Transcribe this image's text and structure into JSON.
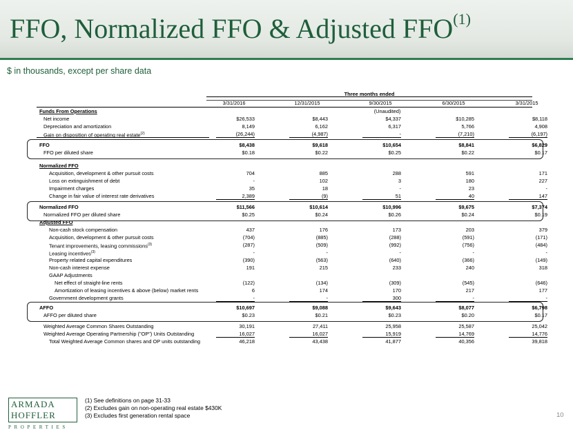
{
  "title": "FFO, Normalized FFO & Adjusted FFO",
  "title_sup": "(1)",
  "subtitle": "$ in thousands, except per share data",
  "table": {
    "header_group": "Three months ended",
    "columns": [
      "3/31/2016",
      "12/31/2015",
      "9/30/2015",
      "6/30/2015",
      "3/31/2015"
    ],
    "unaudited": "(Unaudited)",
    "rows": [
      {
        "label": "Funds From Operations",
        "style": "u",
        "values": [
          "",
          "",
          "",
          "",
          ""
        ]
      },
      {
        "label": "Net income",
        "style": "i1",
        "values": [
          "$26,533",
          "$8,443",
          "$4,337",
          "$10,285",
          "$8,118"
        ]
      },
      {
        "label": "Depreciation and amortization",
        "style": "i1",
        "values": [
          "8,149",
          "6,162",
          "6,317",
          "5,766",
          "4,908"
        ]
      },
      {
        "label": "Gain on disposition of operating real estate",
        "sup": "(2)",
        "style": "i1",
        "values": [
          "(26,244)",
          "(4,987)",
          "-",
          "(7,210)",
          "(6,197)"
        ]
      },
      {
        "label": "FFO",
        "style": "b",
        "values": [
          "$8,438",
          "$9,618",
          "$10,654",
          "$8,841",
          "$6,829"
        ]
      },
      {
        "label": "FFO per diluted share",
        "style": "i1",
        "values": [
          "$0.18",
          "$0.22",
          "$0.25",
          "$0.22",
          "$0.17"
        ]
      },
      {
        "label": "Normalized FFO",
        "style": "u",
        "values": [
          "",
          "",
          "",
          "",
          ""
        ]
      },
      {
        "label": "Acquisition, development & other pursuit costs",
        "style": "i2",
        "values": [
          "704",
          "885",
          "288",
          "591",
          "171"
        ]
      },
      {
        "label": "Loss on extinguishment of debt",
        "style": "i2",
        "values": [
          "-",
          "102",
          "3",
          "180",
          "227"
        ]
      },
      {
        "label": "Impairment charges",
        "style": "i2",
        "values": [
          "35",
          "18",
          "-",
          "23",
          "-"
        ]
      },
      {
        "label": "Change in fair value of interest rate derivatives",
        "style": "i2",
        "values": [
          "2,389",
          "(9)",
          "51",
          "40",
          "147"
        ]
      },
      {
        "label": "Normalized FFO",
        "style": "b",
        "values": [
          "$11,566",
          "$10,614",
          "$10,996",
          "$9,675",
          "$7,374"
        ]
      },
      {
        "label": "Normalized FFO per diluted share",
        "style": "i1",
        "values": [
          "$0.25",
          "$0.24",
          "$0.26",
          "$0.24",
          "$0.19"
        ]
      },
      {
        "label": "Adjusted FFO",
        "style": "u",
        "values": [
          "",
          "",
          "",
          "",
          ""
        ]
      },
      {
        "label": "Non-cash stock compensation",
        "style": "i2",
        "values": [
          "437",
          "176",
          "173",
          "203",
          "379"
        ]
      },
      {
        "label": "Acquisition, development & other pursuit costs",
        "style": "i2",
        "values": [
          "(704)",
          "(885)",
          "(288)",
          "(591)",
          "(171)"
        ]
      },
      {
        "label": "Tenant improvements, leasing commissions",
        "sup": "(3)",
        "style": "i2",
        "values": [
          "(287)",
          "(509)",
          "(992)",
          "(756)",
          "(484)"
        ]
      },
      {
        "label": "Leasing incentives",
        "sup": "(3)",
        "style": "i2",
        "values": [
          "-",
          "-",
          "-",
          "-",
          "-"
        ]
      },
      {
        "label": "Property related capital expenditures",
        "style": "i2",
        "values": [
          "(390)",
          "(563)",
          "(640)",
          "(366)",
          "(149)"
        ]
      },
      {
        "label": "Non-cash interest expense",
        "style": "i2",
        "values": [
          "191",
          "215",
          "233",
          "240",
          "318"
        ]
      },
      {
        "label": "GAAP Adjustments",
        "style": "i2",
        "values": [
          "",
          "",
          "",
          "",
          ""
        ]
      },
      {
        "label": "Net effect of straight-line rents",
        "style": "i3",
        "values": [
          "(122)",
          "(134)",
          "(309)",
          "(545)",
          "(646)"
        ]
      },
      {
        "label": "Amortization of leasing incentives & above (below) market rents",
        "style": "i3",
        "values": [
          "6",
          "174",
          "170",
          "217",
          "177"
        ]
      },
      {
        "label": "Government development grants",
        "style": "i2",
        "values": [
          "-",
          "-",
          "300",
          "-",
          "-"
        ]
      },
      {
        "label": "AFFO",
        "style": "b",
        "values": [
          "$10,697",
          "$9,088",
          "$9,643",
          "$8,077",
          "$6,798"
        ]
      },
      {
        "label": "AFFO per diluted share",
        "style": "i1",
        "values": [
          "$0.23",
          "$0.21",
          "$0.23",
          "$0.20",
          "$0.17"
        ]
      },
      {
        "label": "Weighted Average Common Shares Outstanding",
        "style": "i1",
        "values": [
          "30,191",
          "27,411",
          "25,958",
          "25,587",
          "25,042"
        ]
      },
      {
        "label": "Weighted Average Operating Partnership (\"OP\") Units Outstanding",
        "style": "i1",
        "values": [
          "16,027",
          "16,027",
          "15,919",
          "14,769",
          "14,776"
        ]
      },
      {
        "label": "Total Weighted Average Common shares and OP units outstanding",
        "style": "i2",
        "values": [
          "46,218",
          "43,438",
          "41,877",
          "40,356",
          "39,818"
        ]
      }
    ]
  },
  "logo": {
    "line1": "ARMADA HOFFLER",
    "line2": "PROPERTIES"
  },
  "footnotes": [
    "(1)   See definitions on page 31-33",
    "(2)   Excludes gain on non-operating real estate $430K",
    "(3)   Excludes first generation rental space"
  ],
  "page_number": "10"
}
